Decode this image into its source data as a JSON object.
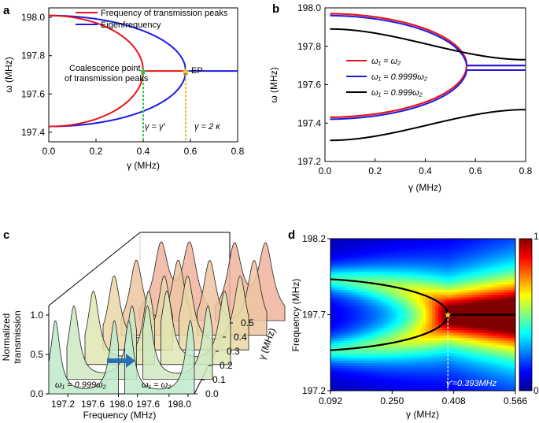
{
  "panels": {
    "a": {
      "label": "a"
    },
    "b": {
      "label": "b"
    },
    "c": {
      "label": "c"
    },
    "d": {
      "label": "d"
    }
  },
  "chart_data": [
    {
      "panel": "a",
      "type": "line",
      "xlabel": "γ (MHz)",
      "ylabel": "ω (MHz)",
      "xlim": [
        0,
        0.8
      ],
      "ylim": [
        197.35,
        198.05
      ],
      "xticks": [
        "0.0",
        "0.2",
        "0.4",
        "0.6",
        "0.8"
      ],
      "yticks": [
        "197.4",
        "197.6",
        "197.8",
        "198.0"
      ],
      "center": 197.72,
      "gamma_ep": 0.58,
      "gamma_coalesce": 0.4,
      "series": [
        {
          "name": "Frequency of transmission peaks",
          "color": "#e8141c"
        },
        {
          "name": "Eigenfrequency",
          "color": "#1c1ce6"
        }
      ],
      "annotations": {
        "coalescence_line1": "Coalescence point",
        "coalescence_line2": "of transmission peaks",
        "ep": "EP",
        "gamma_eq_gprime": "γ = γ′",
        "gamma_eq_2kappa": "γ = 2 κ"
      }
    },
    {
      "panel": "b",
      "type": "line",
      "xlabel": "γ (MHz)",
      "ylabel": "ω (MHz)",
      "xlim": [
        0,
        0.8
      ],
      "ylim": [
        197.2,
        198.0
      ],
      "xticks": [
        "0.0",
        "0.2",
        "0.4",
        "0.6",
        "0.8"
      ],
      "yticks": [
        "197.2",
        "197.4",
        "197.6",
        "197.8",
        "198.0"
      ],
      "x_start": 0.02,
      "series": [
        {
          "name": "ω₁ = ω₂",
          "color": "#e8141c",
          "upper_start": 197.97,
          "lower_start": 197.43,
          "merge": 197.7
        },
        {
          "name": "ω₁ = 0.9999ω₂",
          "color": "#1c1ce6",
          "upper_start": 197.96,
          "lower_start": 197.42,
          "upper_end": 197.7,
          "lower_end": 197.675
        },
        {
          "name": "ω₁ = 0.999ω₂",
          "color": "#000000",
          "upper_start": 197.89,
          "lower_start": 197.31,
          "upper_end": 197.73,
          "lower_end": 197.47
        }
      ]
    },
    {
      "panel": "c",
      "type": "line",
      "xlabel": "Frequency (MHz)",
      "ylabel_line1": "Normalized",
      "ylabel_line2": "transmission",
      "zlabel": "γ (MHz)",
      "xticks": [
        "197.2",
        "197.6",
        "198.0"
      ],
      "yticks": [
        "0.0",
        "0.5",
        "1.0"
      ],
      "depth_ticks": [
        "0.0",
        "0.1",
        "0.2",
        "0.3",
        "0.4",
        "0.5"
      ],
      "slice_gammas": [
        0.0,
        0.1,
        0.2,
        0.3,
        0.4,
        0.5
      ],
      "labels": {
        "left": "ω₁ = 0.999ω₂",
        "right": "ω₁ = ω₂"
      }
    },
    {
      "panel": "d",
      "type": "heatmap",
      "xlabel": "γ (MHz)",
      "ylabel": "Frequency (MHz)",
      "xlim": [
        0.092,
        0.566
      ],
      "ylim": [
        197.2,
        198.2
      ],
      "xticks": [
        "0.092",
        "0.250",
        "0.408",
        "0.566"
      ],
      "yticks": [
        "197.2",
        "197.7",
        "198.2"
      ],
      "colorbar": {
        "min": "0",
        "max": "1"
      },
      "center": 197.7,
      "gamma_ep": 0.393,
      "annotation": "γ′=0.393MHz"
    }
  ]
}
